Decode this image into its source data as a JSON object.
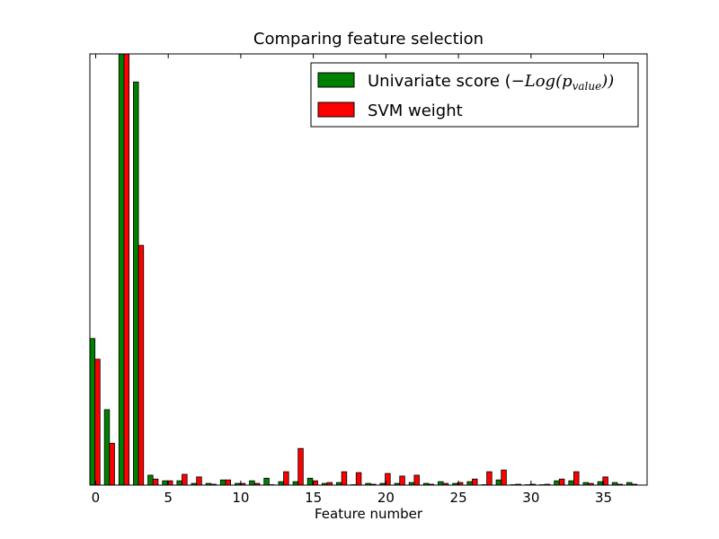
{
  "chart_data": {
    "type": "bar",
    "title": "Comparing feature selection",
    "xlabel": "Feature number",
    "ylabel": "",
    "xlim": [
      -0.4,
      38.0
    ],
    "ylim": [
      0,
      1.0
    ],
    "xticks": [
      0,
      5,
      10,
      15,
      20,
      25,
      30,
      35
    ],
    "yticks_visible": false,
    "grid": false,
    "legend_position": "top-right",
    "x": [
      0,
      1,
      2,
      3,
      4,
      5,
      6,
      7,
      8,
      9,
      10,
      11,
      12,
      13,
      14,
      15,
      16,
      17,
      18,
      19,
      20,
      21,
      22,
      23,
      24,
      25,
      26,
      27,
      28,
      29,
      30,
      31,
      32,
      33,
      34,
      35,
      36,
      37
    ],
    "series": [
      {
        "name": "Univariate score",
        "legend_math": "−Log(p",
        "legend_sub": "value",
        "color": "#008000",
        "values": [
          0.34,
          0.175,
          1.0,
          0.935,
          0.023,
          0.01,
          0.01,
          0.004,
          0.004,
          0.012,
          0.004,
          0.01,
          0.016,
          0.008,
          0.008,
          0.016,
          0.004,
          0.006,
          0.001,
          0.004,
          0.004,
          0.004,
          0.006,
          0.004,
          0.008,
          0.004,
          0.008,
          0.001,
          0.012,
          0.001,
          0.001,
          0.001,
          0.01,
          0.01,
          0.006,
          0.008,
          0.006,
          0.006
        ]
      },
      {
        "name": "SVM weight",
        "color": "#ff0000",
        "values": [
          0.292,
          0.097,
          1.0,
          0.556,
          0.014,
          0.01,
          0.025,
          0.019,
          0.002,
          0.012,
          0.004,
          0.004,
          0.001,
          0.031,
          0.085,
          0.01,
          0.006,
          0.031,
          0.029,
          0.002,
          0.027,
          0.021,
          0.023,
          0.002,
          0.004,
          0.006,
          0.014,
          0.031,
          0.035,
          0.002,
          0.002,
          0.002,
          0.014,
          0.031,
          0.004,
          0.019,
          0.002,
          0.002
        ]
      }
    ]
  }
}
